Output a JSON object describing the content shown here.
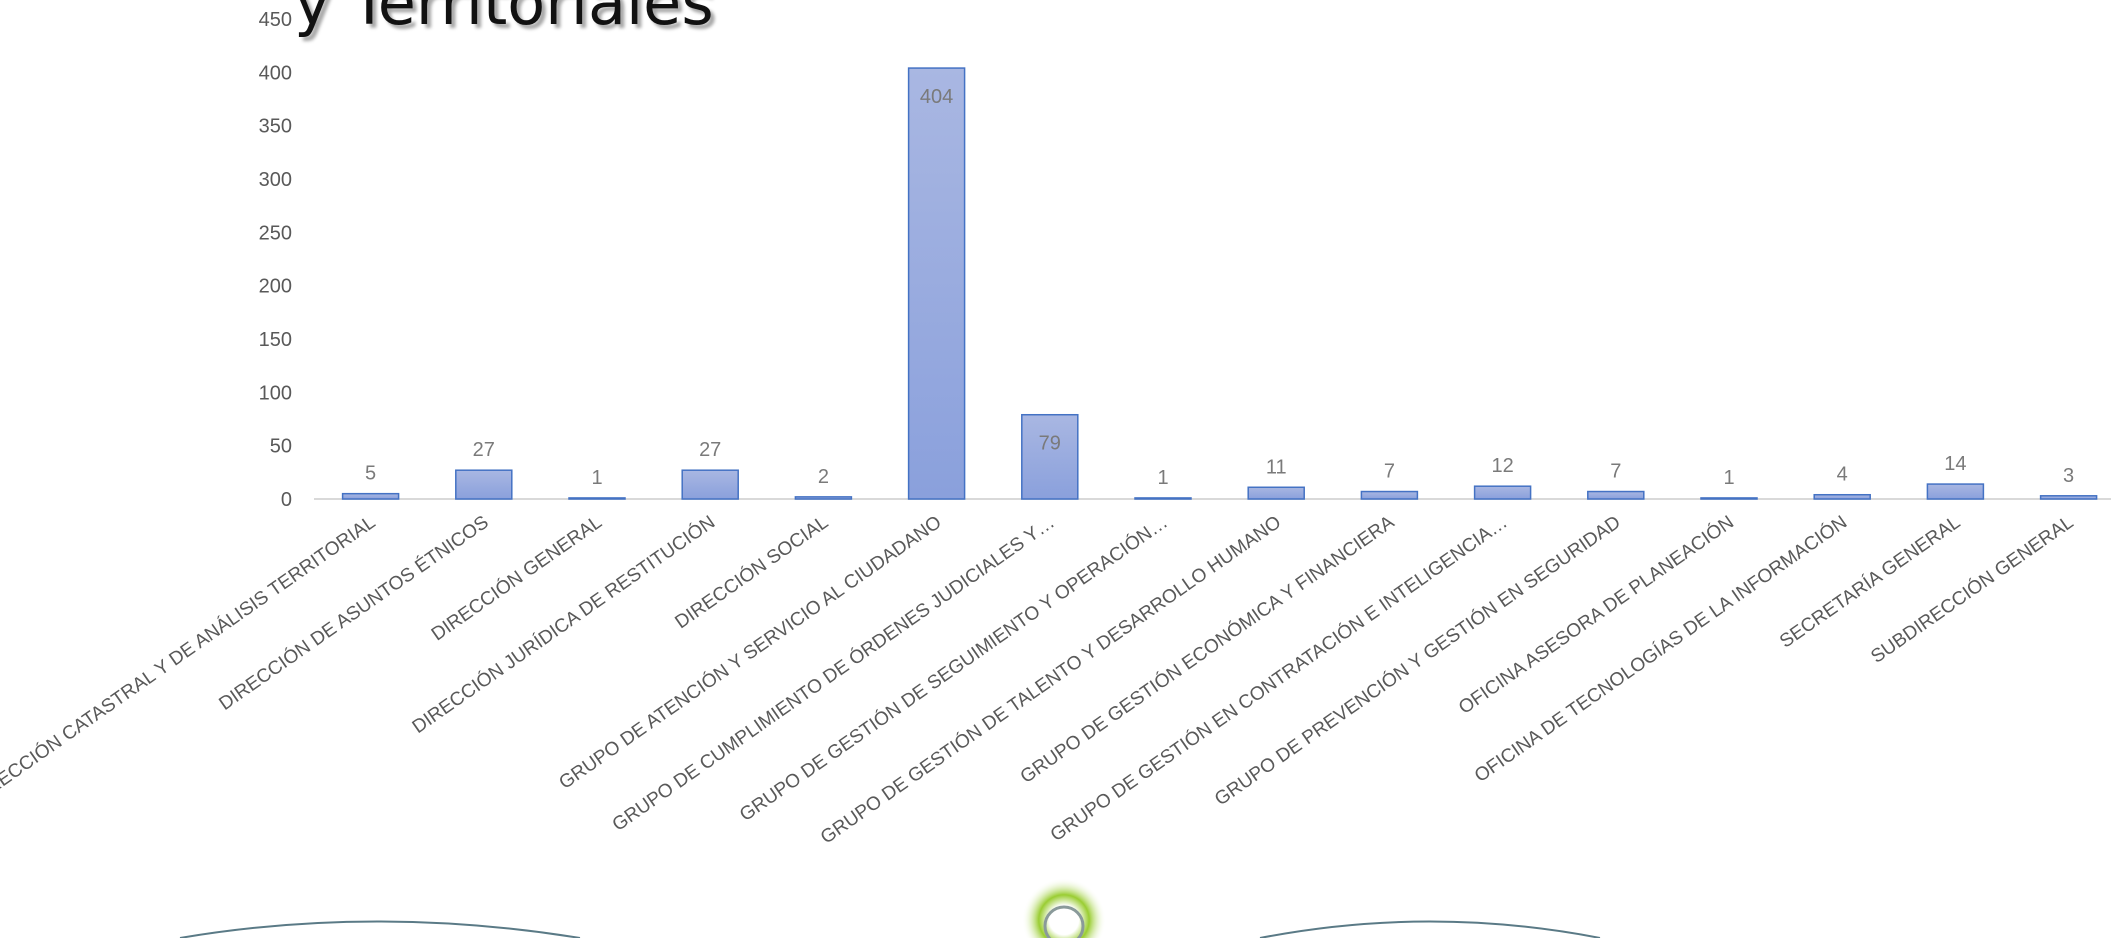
{
  "slide": {
    "title": "y Territoriales"
  },
  "colors": {
    "bar_top": "#a9b7e2",
    "bar_bottom": "#8aa0dc",
    "bar_stroke": "#4472c4",
    "axis": "#d9d9d9",
    "decor_arc": "#5a7a86",
    "decor_knob": "#9acd32"
  },
  "chart_data": {
    "type": "bar",
    "categories": [
      "DIRECCIÓN CATASTRAL Y DE ANÁLISIS TERRITORIAL",
      "DIRECCIÓN DE ASUNTOS ÉTNICOS",
      "DIRECCIÓN GENERAL",
      "DIRECCIÓN JURÍDICA DE RESTITUCIÓN",
      "DIRECCIÓN SOCIAL",
      "GRUPO DE ATENCIÓN Y SERVICIO AL CIUDADANO",
      "GRUPO DE CUMPLIMIENTO DE ÓRDENES JUDICIALES Y…",
      "GRUPO DE GESTIÓN DE SEGUIMIENTO Y OPERACIÓN…",
      "GRUPO DE GESTIÓN DE TALENTO Y DESARROLLO HUMANO",
      "GRUPO DE GESTIÓN ECONÓMICA Y FINANCIERA",
      "GRUPO DE GESTIÓN EN CONTRATACIÓN E INTELIGENCIA…",
      "GRUPO DE PREVENCIÓN Y GESTIÓN EN SEGURIDAD",
      "OFICINA ASESORA DE PLANEACIÓN",
      "OFICINA DE TECNOLOGÍAS DE LA INFORMACIÓN",
      "SECRETARÍA GENERAL",
      "SUBDIRECCIÓN GENERAL"
    ],
    "values": [
      5,
      27,
      1,
      27,
      2,
      404,
      79,
      1,
      11,
      7,
      12,
      7,
      1,
      4,
      14,
      3
    ],
    "ylim": [
      0,
      450
    ],
    "yticks": [
      0,
      50,
      100,
      150,
      200,
      250,
      300,
      350,
      400,
      450
    ],
    "grid": false,
    "legend": "none",
    "data_labels": true
  }
}
